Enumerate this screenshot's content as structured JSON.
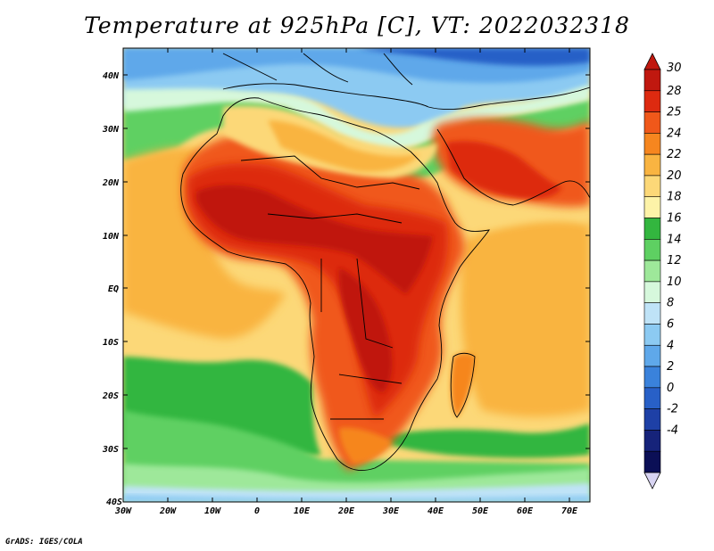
{
  "title": "Temperature at 925hPa [C], VT: 2022032318",
  "credit": "GrADS: IGES/COLA",
  "map": {
    "lat_labels": [
      "40N",
      "30N",
      "20N",
      "10N",
      "EQ",
      "10S",
      "20S",
      "30S",
      "40S"
    ],
    "lon_labels": [
      "30W",
      "20W",
      "10W",
      "0",
      "10E",
      "20E",
      "30E",
      "40E",
      "50E",
      "60E",
      "70E"
    ],
    "lon_range": [
      -30,
      75
    ],
    "lat_range": [
      -40,
      45
    ]
  },
  "colorbar": {
    "levels": [
      "30",
      "28",
      "25",
      "24",
      "22",
      "20",
      "18",
      "16",
      "14",
      "12",
      "10",
      "8",
      "6",
      "4",
      "2",
      "0",
      "-2",
      "-4"
    ],
    "colors": [
      "#c0180f",
      "#dd2a10",
      "#f0581a",
      "#f6861f",
      "#f9b441",
      "#fcd878",
      "#fdf3a8",
      "#33b63f",
      "#5ed062",
      "#9ee89a",
      "#d6f8dc",
      "#bfe3f7",
      "#8ccaf2",
      "#5fa8ea",
      "#3a82db",
      "#2860c7",
      "#1e40a6",
      "#16237a",
      "#0b0f56"
    ],
    "cap_low": "#d8d4f2"
  }
}
